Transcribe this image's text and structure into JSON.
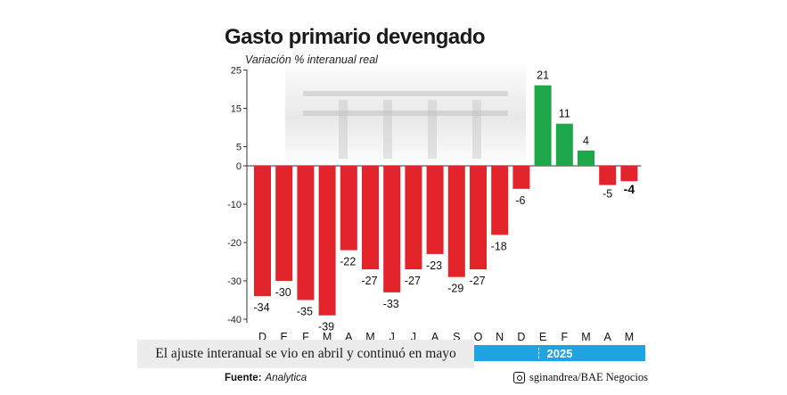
{
  "header": {
    "title": "Gasto primario devengado",
    "subtitle": "Variación % interanual real"
  },
  "caption": "El ajuste interanual se vio en abril y continuó en mayo",
  "year_label": "2025",
  "footer": {
    "source_label": "Fuente:",
    "source_value": "Analytica",
    "credit": "sginandrea/BAE Negocios"
  },
  "icons": [
    "instagram-icon"
  ],
  "colors": {
    "negative": "#e3242b",
    "positive": "#1ea64b",
    "year_bar": "#1fa3e3",
    "axis": "#333333"
  },
  "chart_data": {
    "type": "bar",
    "title": "Gasto primario devengado",
    "subtitle": "Variación % interanual real",
    "categories": [
      "D",
      "E",
      "F",
      "M",
      "A",
      "M",
      "J",
      "J",
      "A",
      "S",
      "O",
      "N",
      "D",
      "E",
      "F",
      "M",
      "A",
      "M"
    ],
    "values": [
      -34,
      -30,
      -35,
      -39,
      -22,
      -27,
      -33,
      -27,
      -23,
      -29,
      -27,
      -18,
      -6,
      21,
      11,
      4,
      -5,
      -4
    ],
    "value_labels": [
      "-34",
      "-30",
      "-35",
      "-39",
      "-22",
      "-27",
      "-33",
      "-27",
      "-23",
      "-29",
      "-27",
      "-18",
      "-6",
      "21",
      "11",
      "4",
      "-5",
      "-4"
    ],
    "y_ticks": [
      25,
      15,
      5,
      0,
      -10,
      -20,
      -30,
      -40
    ],
    "y_tick_labels": [
      "25",
      "15",
      "5",
      "0",
      "-10",
      "-20",
      "-30",
      "-40"
    ],
    "ylim": [
      -40,
      25
    ],
    "grid": false,
    "highlight_last": true
  }
}
